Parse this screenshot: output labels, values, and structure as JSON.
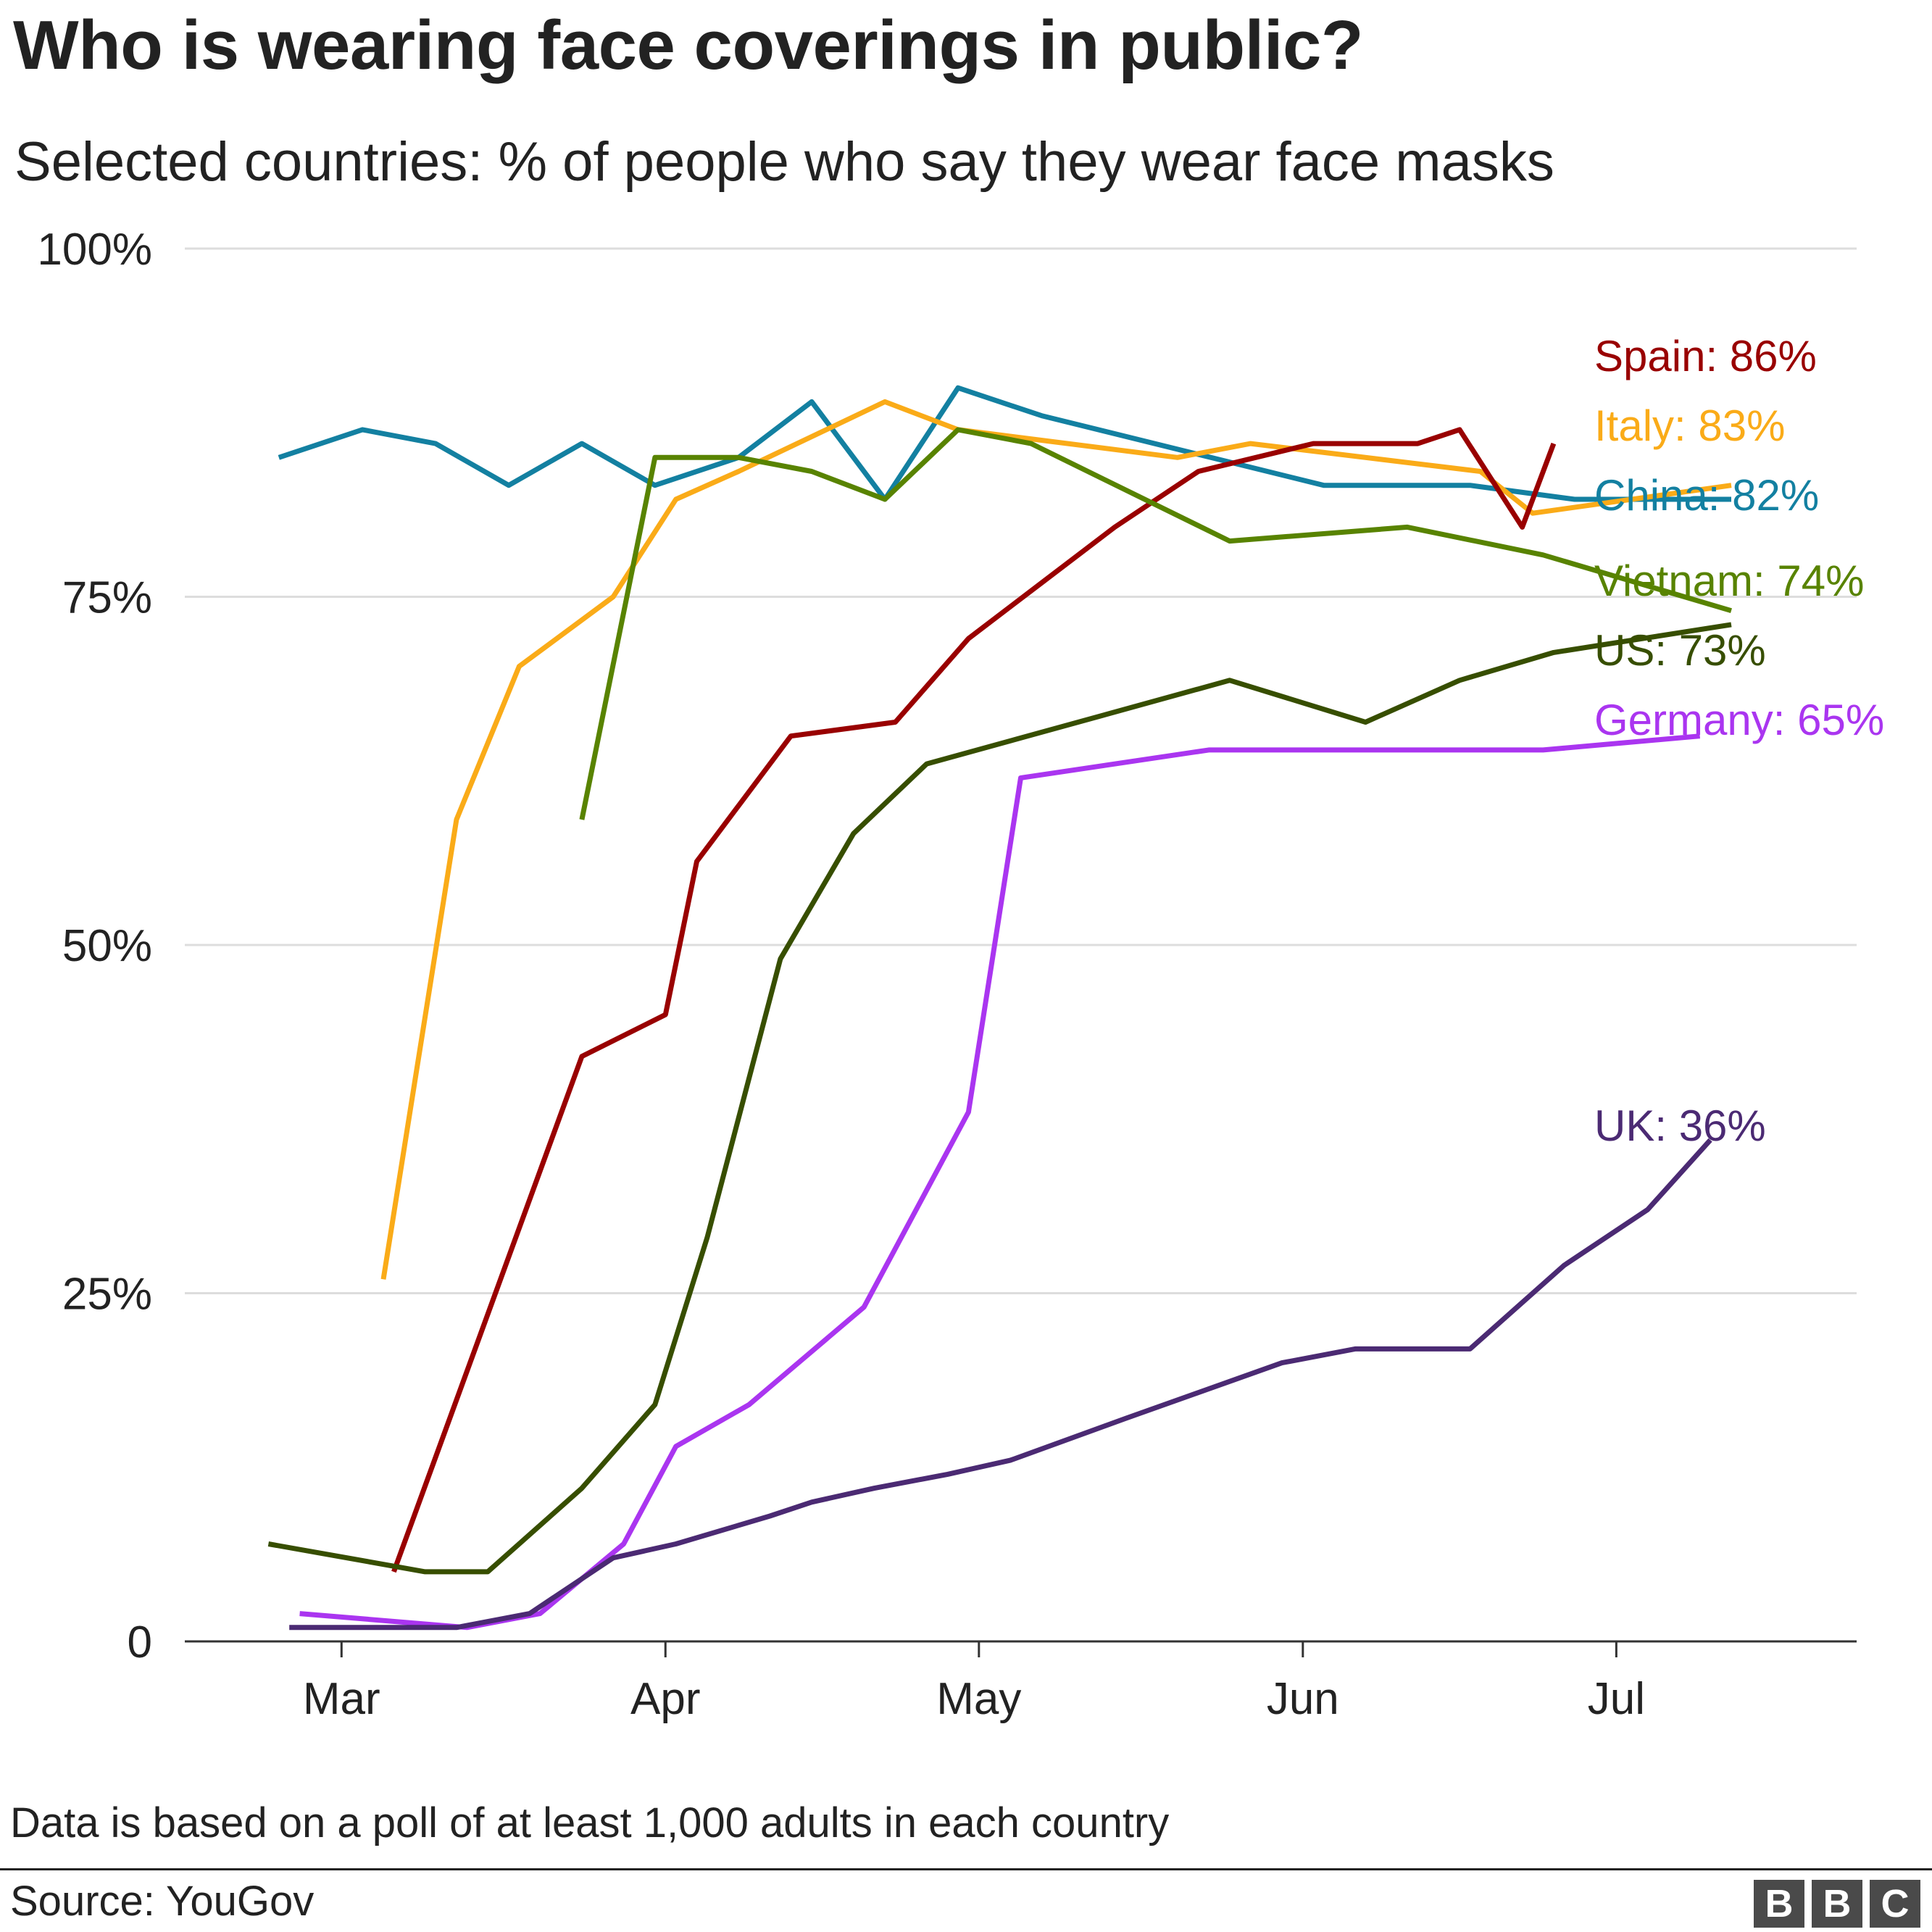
{
  "header": {
    "title": "Who is wearing face coverings in public?",
    "subtitle": "Selected countries: % of people who say they wear face masks"
  },
  "footer": {
    "note": "Data is based on a poll of at least 1,000 adults in each country",
    "source": "Source: YouGov",
    "logo_letters": [
      "B",
      "B",
      "C"
    ]
  },
  "chart_data": {
    "type": "line",
    "title": "Who is wearing face coverings in public?",
    "subtitle": "Selected countries: % of people who say they wear face masks",
    "xlabel": "",
    "ylabel": "",
    "x_axis": {
      "type": "date",
      "range": [
        "2020-02-15",
        "2020-07-24"
      ],
      "ticks": [
        {
          "date": "2020-03-01",
          "label": "Mar"
        },
        {
          "date": "2020-04-01",
          "label": "Apr"
        },
        {
          "date": "2020-05-01",
          "label": "May"
        },
        {
          "date": "2020-06-01",
          "label": "Jun"
        },
        {
          "date": "2020-07-01",
          "label": "Jul"
        }
      ]
    },
    "y_axis": {
      "ylim": [
        0,
        100
      ],
      "ticks": [
        {
          "value": 0,
          "label": "0"
        },
        {
          "value": 25,
          "label": "25%"
        },
        {
          "value": 50,
          "label": "50%"
        },
        {
          "value": 75,
          "label": "75%"
        },
        {
          "value": 100,
          "label": "100%"
        }
      ]
    },
    "grid": "horizontal",
    "legend": "end-of-line labels",
    "series": [
      {
        "name": "China",
        "label": "China: 82%",
        "color": "#1380A1",
        "points": [
          [
            "2020-02-24",
            85
          ],
          [
            "2020-03-03",
            87
          ],
          [
            "2020-03-10",
            86
          ],
          [
            "2020-03-17",
            83
          ],
          [
            "2020-03-24",
            86
          ],
          [
            "2020-03-31",
            83
          ],
          [
            "2020-04-08",
            85
          ],
          [
            "2020-04-15",
            89
          ],
          [
            "2020-04-22",
            82
          ],
          [
            "2020-04-29",
            90
          ],
          [
            "2020-05-07",
            88
          ],
          [
            "2020-06-03",
            83
          ],
          [
            "2020-06-17",
            83
          ],
          [
            "2020-06-27",
            82
          ],
          [
            "2020-07-12",
            82
          ]
        ]
      },
      {
        "name": "Italy",
        "label": "Italy: 83%",
        "color": "#FAAB18",
        "points": [
          [
            "2020-03-05",
            26
          ],
          [
            "2020-03-12",
            59
          ],
          [
            "2020-03-18",
            70
          ],
          [
            "2020-03-27",
            75
          ],
          [
            "2020-04-02",
            82
          ],
          [
            "2020-04-08",
            84
          ],
          [
            "2020-04-22",
            89
          ],
          [
            "2020-04-29",
            87
          ],
          [
            "2020-05-20",
            85
          ],
          [
            "2020-05-27",
            86
          ],
          [
            "2020-06-18",
            84
          ],
          [
            "2020-06-23",
            81
          ],
          [
            "2020-07-12",
            83
          ]
        ]
      },
      {
        "name": "Spain",
        "label": "Spain: 86%",
        "color": "#990000",
        "points": [
          [
            "2020-03-06",
            5
          ],
          [
            "2020-03-24",
            42
          ],
          [
            "2020-04-01",
            45
          ],
          [
            "2020-04-04",
            56
          ],
          [
            "2020-04-13",
            65
          ],
          [
            "2020-04-23",
            66
          ],
          [
            "2020-04-30",
            72
          ],
          [
            "2020-05-07",
            76
          ],
          [
            "2020-05-14",
            80
          ],
          [
            "2020-05-22",
            84
          ],
          [
            "2020-06-02",
            86
          ],
          [
            "2020-06-12",
            86
          ],
          [
            "2020-06-16",
            87
          ],
          [
            "2020-06-22",
            80
          ],
          [
            "2020-06-25",
            86
          ]
        ]
      },
      {
        "name": "Vietnam",
        "label": "Vietnam: 74%",
        "color": "#588300",
        "points": [
          [
            "2020-03-24",
            59
          ],
          [
            "2020-03-31",
            85
          ],
          [
            "2020-04-08",
            85
          ],
          [
            "2020-04-15",
            84
          ],
          [
            "2020-04-22",
            82
          ],
          [
            "2020-04-29",
            87
          ],
          [
            "2020-05-06",
            86
          ],
          [
            "2020-05-25",
            79
          ],
          [
            "2020-06-11",
            80
          ],
          [
            "2020-06-24",
            78
          ],
          [
            "2020-07-12",
            74
          ]
        ]
      },
      {
        "name": "US",
        "label": "US: 73%",
        "color": "#374E00",
        "points": [
          [
            "2020-02-23",
            7
          ],
          [
            "2020-03-09",
            5
          ],
          [
            "2020-03-15",
            5
          ],
          [
            "2020-03-24",
            11
          ],
          [
            "2020-03-31",
            17
          ],
          [
            "2020-04-05",
            29
          ],
          [
            "2020-04-12",
            49
          ],
          [
            "2020-04-19",
            58
          ],
          [
            "2020-04-26",
            63
          ],
          [
            "2020-05-25",
            69
          ],
          [
            "2020-06-07",
            66
          ],
          [
            "2020-06-16",
            69
          ],
          [
            "2020-06-25",
            71
          ],
          [
            "2020-07-12",
            73
          ]
        ]
      },
      {
        "name": "Germany",
        "label": "Germany: 65%",
        "color": "#AA35F0",
        "points": [
          [
            "2020-02-26",
            2
          ],
          [
            "2020-03-13",
            1
          ],
          [
            "2020-03-20",
            2
          ],
          [
            "2020-03-28",
            7
          ],
          [
            "2020-04-02",
            14
          ],
          [
            "2020-04-09",
            17
          ],
          [
            "2020-04-20",
            24
          ],
          [
            "2020-04-30",
            38
          ],
          [
            "2020-05-05",
            62
          ],
          [
            "2020-05-23",
            64
          ],
          [
            "2020-06-09",
            64
          ],
          [
            "2020-06-24",
            64
          ],
          [
            "2020-07-09",
            65
          ]
        ]
      },
      {
        "name": "UK",
        "label": "UK: 36%",
        "color": "#4B2A73",
        "points": [
          [
            "2020-02-25",
            1
          ],
          [
            "2020-03-12",
            1
          ],
          [
            "2020-03-19",
            2
          ],
          [
            "2020-03-27",
            6
          ],
          [
            "2020-04-02",
            7
          ],
          [
            "2020-04-11",
            9
          ],
          [
            "2020-04-15",
            10
          ],
          [
            "2020-04-21",
            11
          ],
          [
            "2020-04-28",
            12
          ],
          [
            "2020-05-04",
            13
          ],
          [
            "2020-05-15",
            16
          ],
          [
            "2020-05-30",
            20
          ],
          [
            "2020-06-06",
            21
          ],
          [
            "2020-06-17",
            21
          ],
          [
            "2020-06-26",
            27
          ],
          [
            "2020-07-04",
            31
          ],
          [
            "2020-07-10",
            36
          ]
        ]
      }
    ]
  }
}
